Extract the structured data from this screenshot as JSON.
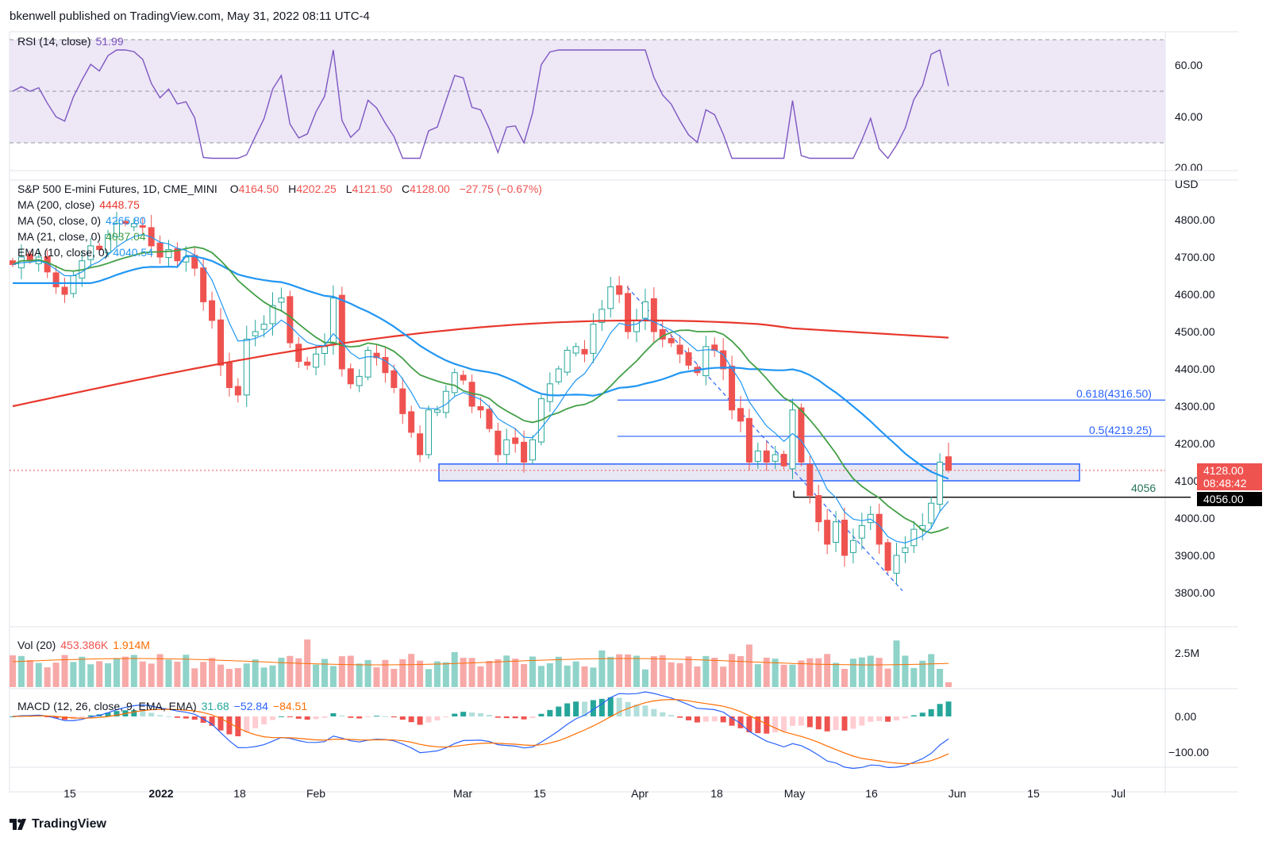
{
  "header": {
    "published": "bkenwell published on TradingView.com, May 31, 2022 08:11 UTC-4"
  },
  "colors": {
    "up": "#26a69a",
    "down": "#ef5350",
    "ma200": "#e8382d",
    "ma50": "#2196f3",
    "ma21": "#43a047",
    "ema10": "#2196f3",
    "rsi": "#7e57c2",
    "macd": "#2962ff",
    "signal": "#ff6d00",
    "fib": "#2962ff",
    "rsi_band": "#ede7f6"
  },
  "rsi": {
    "label": "RSI (14, close)",
    "value": "51.99",
    "ticks": [
      "60.00",
      "40.00",
      "20.00"
    ],
    "levels": [
      70,
      50,
      30
    ]
  },
  "main": {
    "symbol": "S&P 500 E-mini Futures, 1D, CME_MINI",
    "o_label": "O",
    "o": "4164.50",
    "h_label": "H",
    "h": "4202.25",
    "l_label": "L",
    "l": "4121.50",
    "c_label": "C",
    "c": "4128.00",
    "change": "−27.75 (−0.67%)",
    "currency": "USD",
    "ma200_label": "MA (200, close)",
    "ma200_value": "4448.75",
    "ma50_label": "MA (50, close, 0)",
    "ma50_value": "4265.80",
    "ma21_label": "MA (21, close, 0)",
    "ma21_value": "4037.04",
    "ema10_label": "EMA (10, close, 0)",
    "ema10_value": "4040.54",
    "ticks": [
      "4800.00",
      "4700.00",
      "4600.00",
      "4500.00",
      "4400.00",
      "4300.00",
      "4200.00",
      "4100.00",
      "4000.00",
      "3900.00",
      "3800.00"
    ],
    "last_price": "4128.00",
    "countdown": "08:48:42",
    "level_label": "4056",
    "level_tag": "4056.00",
    "fib_618": "0.618(4316.50)",
    "fib_50": "0.5(4219.25)"
  },
  "volume": {
    "label": "Vol (20)",
    "v1": "453.386K",
    "v2": "1.914M",
    "tick": "2.5M"
  },
  "macd": {
    "label": "MACD (12, 26, close, 9, EMA, EMA)",
    "macd": "31.68",
    "signal": "−52.84",
    "hist": "−84.51",
    "ticks": [
      "0.00",
      "−100.00"
    ]
  },
  "xaxis": [
    "15",
    "2022",
    "18",
    "Feb",
    "Mar",
    "15",
    "Apr",
    "18",
    "May",
    "16",
    "Jun",
    "15",
    "Jul"
  ],
  "footer": {
    "brand": "TradingView"
  },
  "chart_data": {
    "type": "candlestick",
    "ylim": [
      3720,
      4880
    ],
    "level_4056": 4056,
    "fib_levels": [
      4316.5,
      4219.25
    ],
    "zone": [
      4100,
      4145
    ],
    "closes": [
      4680,
      4700,
      4690,
      4700,
      4660,
      4620,
      4600,
      4650,
      4690,
      4730,
      4720,
      4760,
      4790,
      4790,
      4790,
      4780,
      4730,
      4700,
      4720,
      4690,
      4700,
      4670,
      4580,
      4530,
      4410,
      4350,
      4330,
      4480,
      4500,
      4520,
      4570,
      4590,
      4470,
      4420,
      4410,
      4440,
      4460,
      4590,
      4400,
      4360,
      4380,
      4450,
      4430,
      4390,
      4350,
      4280,
      4230,
      4170,
      4290,
      4290,
      4340,
      4390,
      4370,
      4300,
      4290,
      4240,
      4170,
      4210,
      4200,
      4150,
      4210,
      4320,
      4360,
      4400,
      4450,
      4460,
      4440,
      4520,
      4560,
      4620,
      4600,
      4500,
      4530,
      4580,
      4500,
      4480,
      4470,
      4440,
      4410,
      4390,
      4460,
      4450,
      4400,
      4290,
      4260,
      4150,
      4180,
      4150,
      4170,
      4140,
      4290,
      4150,
      4060,
      3990,
      3930,
      3990,
      3900,
      3940,
      3980,
      4010,
      3930,
      3860,
      3900,
      3920,
      3970,
      3980,
      4040,
      4150,
      4128
    ]
  }
}
